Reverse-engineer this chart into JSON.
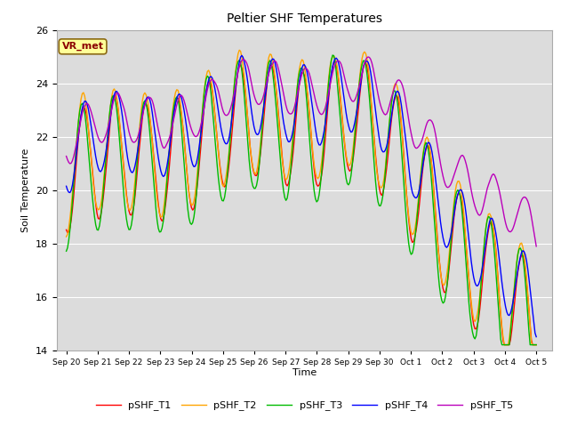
{
  "title": "Peltier SHF Temperatures",
  "xlabel": "Time",
  "ylabel": "Soil Temperature",
  "ylim": [
    14,
    26
  ],
  "annotation": "VR_met",
  "annotation_color": "#8B0000",
  "annotation_bg": "#FFFF99",
  "plot_bg_color": "#DCDCDC",
  "fig_bg": "#FFFFFF",
  "series_colors": [
    "#FF0000",
    "#FFA500",
    "#00BB00",
    "#0000FF",
    "#BB00BB"
  ],
  "series_labels": [
    "pSHF_T1",
    "pSHF_T2",
    "pSHF_T3",
    "pSHF_T4",
    "pSHF_T5"
  ],
  "xtick_labels": [
    "Sep 20",
    "Sep 21",
    "Sep 22",
    "Sep 23",
    "Sep 24",
    "Sep 25",
    "Sep 26",
    "Sep 27",
    "Sep 28",
    "Sep 29",
    "Sep 30",
    "Oct 1",
    "Oct 2",
    "Oct 3",
    "Oct 4",
    "Oct 5"
  ],
  "xtick_positions": [
    0,
    1,
    2,
    3,
    4,
    5,
    6,
    7,
    8,
    9,
    10,
    11,
    12,
    13,
    14,
    15
  ]
}
